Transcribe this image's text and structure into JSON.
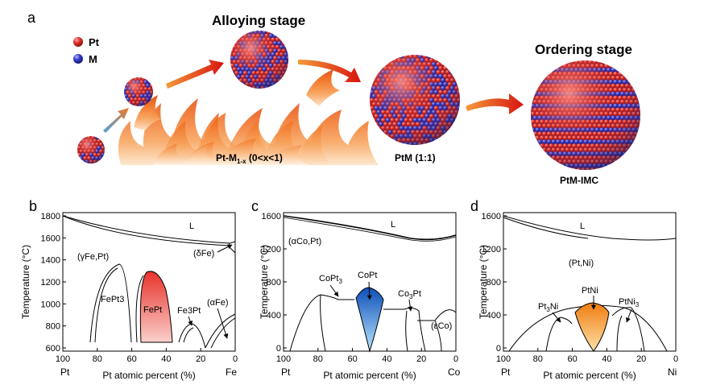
{
  "panel_a": {
    "letter": "a",
    "legend": {
      "pt": "Pt",
      "m": "M"
    },
    "stage1_title": "Alloying stage",
    "stage2_title": "Ordering stage",
    "label_alloy_pre": "Pt-M",
    "label_alloy_sub": "1-x",
    "label_alloy_post": " (0<x<1)",
    "label_ptm": "PtM (1:1)",
    "label_imc": "PtM-IMC",
    "colors": {
      "pt": "#e8322b",
      "m": "#3a3fcf",
      "flame": "#f26a1b",
      "arrow": "#e0261a"
    }
  },
  "panel_b": {
    "letter": "b",
    "ylabel": "Temperature (°C)",
    "xlabel": "Pt atomic percent (%)",
    "yticks": [
      "1800",
      "1600",
      "1400",
      "1200",
      "1000",
      "800",
      "600"
    ],
    "xticks": [
      "100",
      "80",
      "60",
      "40",
      "20",
      "0"
    ],
    "x_left": "Pt",
    "x_right": "Fe",
    "regions": {
      "liquid": "L",
      "solid": "(γFe,Pt)",
      "delta": "(δFe)",
      "fept3": "FePt3",
      "fept": "FePt",
      "fe3pt": "Fe3Pt",
      "alpha": "(αFe)"
    },
    "highlight_color": "#e8322b"
  },
  "panel_c": {
    "letter": "c",
    "ylabel": "Temperature (°C)",
    "xlabel": "Pt atomic percent (%)",
    "yticks": [
      "1600",
      "1200",
      "800",
      "400",
      "0"
    ],
    "xticks": [
      "100",
      "80",
      "60",
      "40",
      "20",
      "0"
    ],
    "x_left": "Pt",
    "x_right": "Co",
    "regions": {
      "liquid": "L",
      "solid": "(αCo,Pt)",
      "copt3_pre": "CoPt",
      "copt3_sub": "3",
      "copt": "CoPt",
      "co3pt_pre": "Co",
      "co3pt_sub": "3",
      "co3pt_post": "Pt",
      "eps": "(εCo)"
    },
    "highlight_color": "#1f6fd6"
  },
  "panel_d": {
    "letter": "d",
    "ylabel": "Temperature (°C)",
    "xlabel": "Pt atomic percent (%)",
    "yticks": [
      "1600",
      "1200",
      "800",
      "400",
      "0"
    ],
    "xticks": [
      "100",
      "80",
      "60",
      "40",
      "20",
      "0"
    ],
    "x_left": "Pt",
    "x_right": "Ni",
    "regions": {
      "liquid": "L",
      "solid": "(Pt,Ni)",
      "pt3ni_pre": "Pt",
      "pt3ni_sub": "3",
      "pt3ni_post": "Ni",
      "ptni": "PtNi",
      "ptni3_pre": "PtNi",
      "ptni3_sub": "3"
    },
    "highlight_color": "#f29a1f"
  }
}
